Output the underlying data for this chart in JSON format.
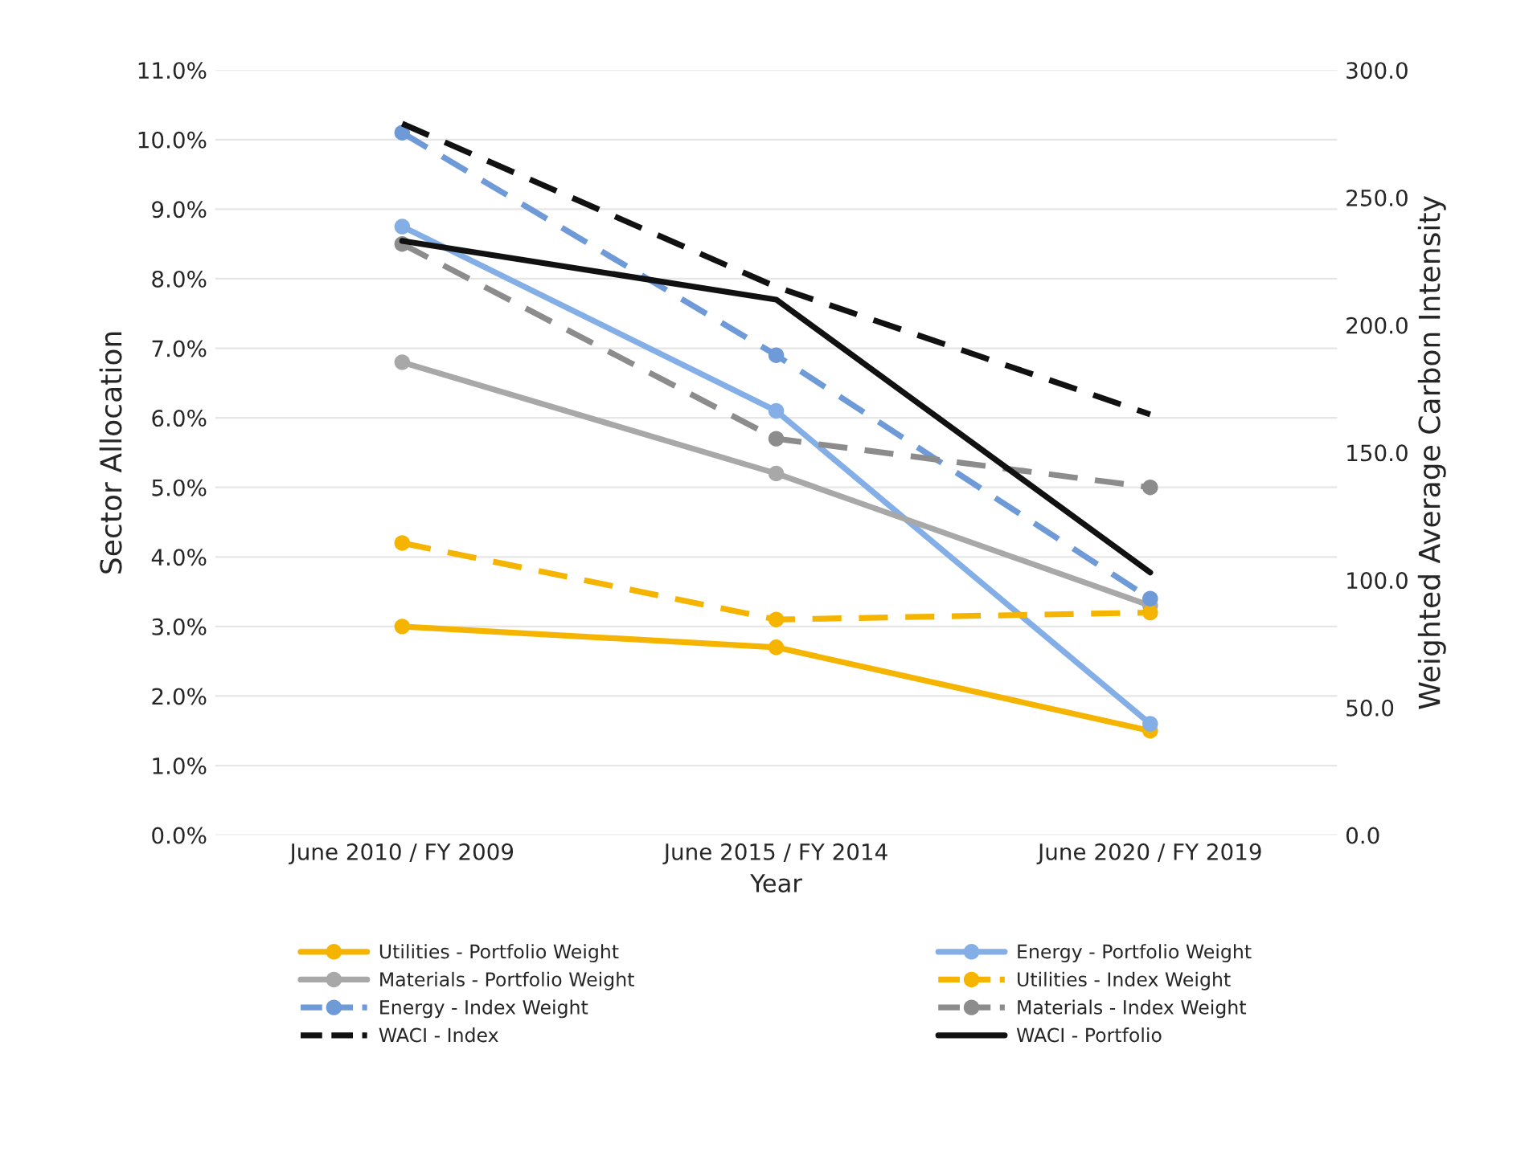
{
  "chart_data": {
    "type": "line",
    "xlabel": "Year",
    "ylabel": "Sector Allocation",
    "y2label": "Weighted Average Carbon Intensity",
    "categories": [
      "June 2010 / FY 2009",
      "June 2015 / FY 2014",
      "June 2020 / FY 2019"
    ],
    "series": [
      {
        "name": "Utilities - Portfolio Weight",
        "color": "#f5b400",
        "values": [
          3.0,
          2.7,
          1.5
        ],
        "marker": "circle",
        "line_style": "solid"
      },
      {
        "name": "Energy - Portfolio Weight",
        "color": "#84aee6",
        "values": [
          8.75,
          6.1,
          1.6
        ],
        "marker": "circle",
        "line_style": "solid"
      },
      {
        "name": "Materials - Portfolio Weight",
        "color": "#a8a8a8",
        "values": [
          6.8,
          5.2,
          3.3
        ],
        "marker": "circle",
        "line_style": "solid"
      },
      {
        "name": "Utilities - Index Weight",
        "color": "#f5b400",
        "values": [
          4.2,
          3.1,
          3.2
        ],
        "marker": "circle",
        "line_style": "dashed"
      },
      {
        "name": "Energy - Index Weight",
        "color": "#6f9ad8",
        "values": [
          10.1,
          6.9,
          3.4
        ],
        "marker": "circle",
        "line_style": "dashed"
      },
      {
        "name": "Materials - Index Weight",
        "color": "#8c8c8c",
        "values": [
          8.5,
          5.7,
          5.0
        ],
        "marker": "circle",
        "line_style": "dashed"
      },
      {
        "name": "WACI - Index",
        "color": "#111111",
        "values": [
          279,
          215,
          165
        ],
        "axis": "y2",
        "marker": "none",
        "line_style": "dashed"
      },
      {
        "name": "WACI - Portfolio",
        "color": "#111111",
        "values": [
          233,
          210,
          103
        ],
        "axis": "y2",
        "marker": "none",
        "line_style": "solid"
      }
    ],
    "ylim": [
      0,
      11
    ],
    "yticks": [
      {
        "value": 0,
        "label": "0.0%"
      },
      {
        "value": 1,
        "label": "1.0%"
      },
      {
        "value": 2,
        "label": "2.0%"
      },
      {
        "value": 3,
        "label": "3.0%"
      },
      {
        "value": 4,
        "label": "4.0%"
      },
      {
        "value": 5,
        "label": "5.0%"
      },
      {
        "value": 6,
        "label": "6.0%"
      },
      {
        "value": 7,
        "label": "7.0%"
      },
      {
        "value": 8,
        "label": "8.0%"
      },
      {
        "value": 9,
        "label": "9.0%"
      },
      {
        "value": 10,
        "label": "10.0%"
      },
      {
        "value": 11,
        "label": "11.0%"
      }
    ],
    "y2lim": [
      0,
      300
    ],
    "y2ticks": [
      {
        "value": 0,
        "label": "0.0"
      },
      {
        "value": 50,
        "label": "50.0"
      },
      {
        "value": 100,
        "label": "100.0"
      },
      {
        "value": 150,
        "label": "150.0"
      },
      {
        "value": 200,
        "label": "200.0"
      },
      {
        "value": 250,
        "label": "250.0"
      },
      {
        "value": 300,
        "label": "300.0"
      }
    ],
    "grid": "y",
    "legend": "bottom"
  }
}
